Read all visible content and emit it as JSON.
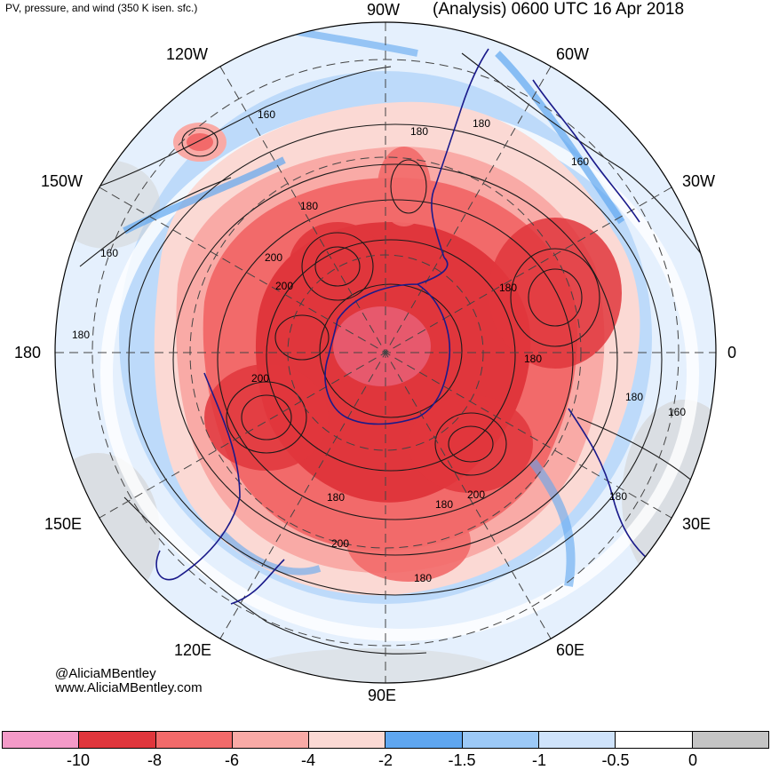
{
  "header": {
    "subtitle": "PV, pressure, and wind (350 K isen. sfc.)",
    "title": "(Analysis) 0600 UTC 16 Apr 2018"
  },
  "longitude_labels": {
    "w90": "90W",
    "w60": "60W",
    "w30": "30W",
    "e0": "0",
    "e30": "30E",
    "e60": "60E",
    "e90": "90E",
    "e120": "120E",
    "e150": "150E",
    "d180": "180",
    "w150": "150W",
    "w120": "120W"
  },
  "contour_labels": {
    "c1": "160",
    "c2": "180",
    "c3": "180",
    "c4": "160",
    "c5": "180",
    "c6": "200",
    "c7": "200",
    "c8": "180",
    "c9": "180",
    "c10": "160",
    "c11": "180",
    "c12": "200",
    "c13": "180",
    "c14": "180",
    "c15": "200",
    "c16": "200",
    "c17": "180",
    "c18": "180",
    "c19": "160",
    "c20": "180"
  },
  "credits": {
    "line1": "@AliciaMBentley",
    "line2": "www.AliciaMBentley.com"
  },
  "colorbar": {
    "colors": [
      "#f49ac8",
      "#e0363c",
      "#f26a6a",
      "#f9aaa6",
      "#fbd9d4",
      "#5fa6f0",
      "#9cc9f7",
      "#cfe3fb",
      "#ffffff",
      "#c4c4c4"
    ],
    "ticks": [
      "-10",
      "-8",
      "-6",
      "-4",
      "-2",
      "-1.5",
      "-1",
      "-0.5",
      "0"
    ]
  }
}
